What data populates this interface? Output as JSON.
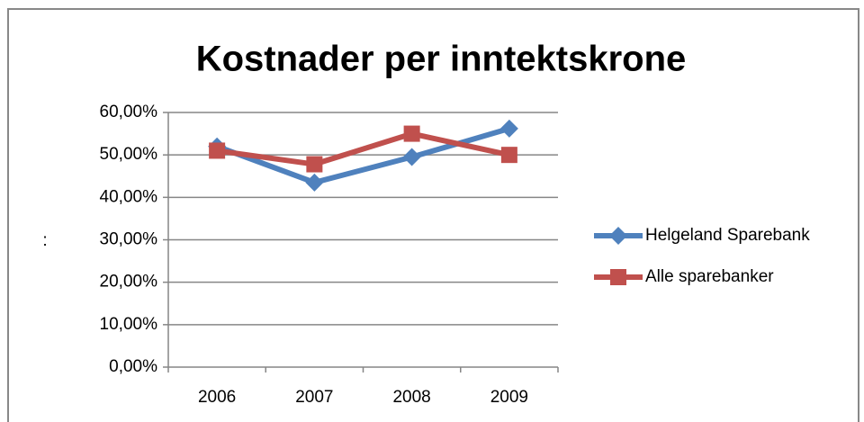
{
  "chart_data": {
    "type": "line",
    "title": "Kostnader per inntektskrone",
    "y_label": ":",
    "categories": [
      "2006",
      "2007",
      "2008",
      "2009"
    ],
    "series": [
      {
        "name": "Helgeland Sparebank",
        "color": "#4f81bd",
        "marker": "diamond",
        "values": [
          52,
          43.5,
          49.5,
          56.2
        ]
      },
      {
        "name": "Alle sparebanker",
        "color": "#c0504d",
        "marker": "square",
        "values": [
          51,
          47.8,
          55,
          50
        ]
      }
    ],
    "ylim": [
      0,
      60
    ],
    "yticks": [
      {
        "value": 0,
        "label": "0,00%"
      },
      {
        "value": 10,
        "label": "10,00%"
      },
      {
        "value": 20,
        "label": "20,00%"
      },
      {
        "value": 30,
        "label": "30,00%"
      },
      {
        "value": 40,
        "label": "40,00%"
      },
      {
        "value": 50,
        "label": "50,00%"
      },
      {
        "value": 60,
        "label": "60,00%"
      }
    ],
    "grid": true,
    "legend": "right"
  }
}
